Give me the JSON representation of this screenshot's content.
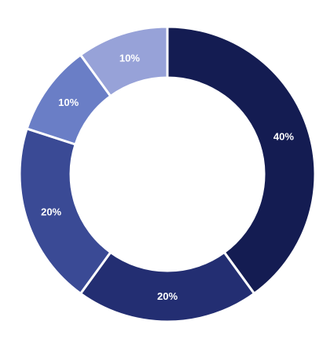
{
  "chart_data": {
    "type": "pie",
    "variant": "donut",
    "start_angle_deg": 0,
    "direction": "clockwise",
    "slices": [
      {
        "value": 40,
        "label": "40%",
        "color": "#141c52"
      },
      {
        "value": 20,
        "label": "20%",
        "color": "#232e72"
      },
      {
        "value": 20,
        "label": "20%",
        "color": "#3a4a95"
      },
      {
        "value": 10,
        "label": "10%",
        "color": "#6a7ec6"
      },
      {
        "value": 10,
        "label": "10%",
        "color": "#97a2d8"
      }
    ],
    "legend": "none",
    "background": "#ffffff"
  }
}
